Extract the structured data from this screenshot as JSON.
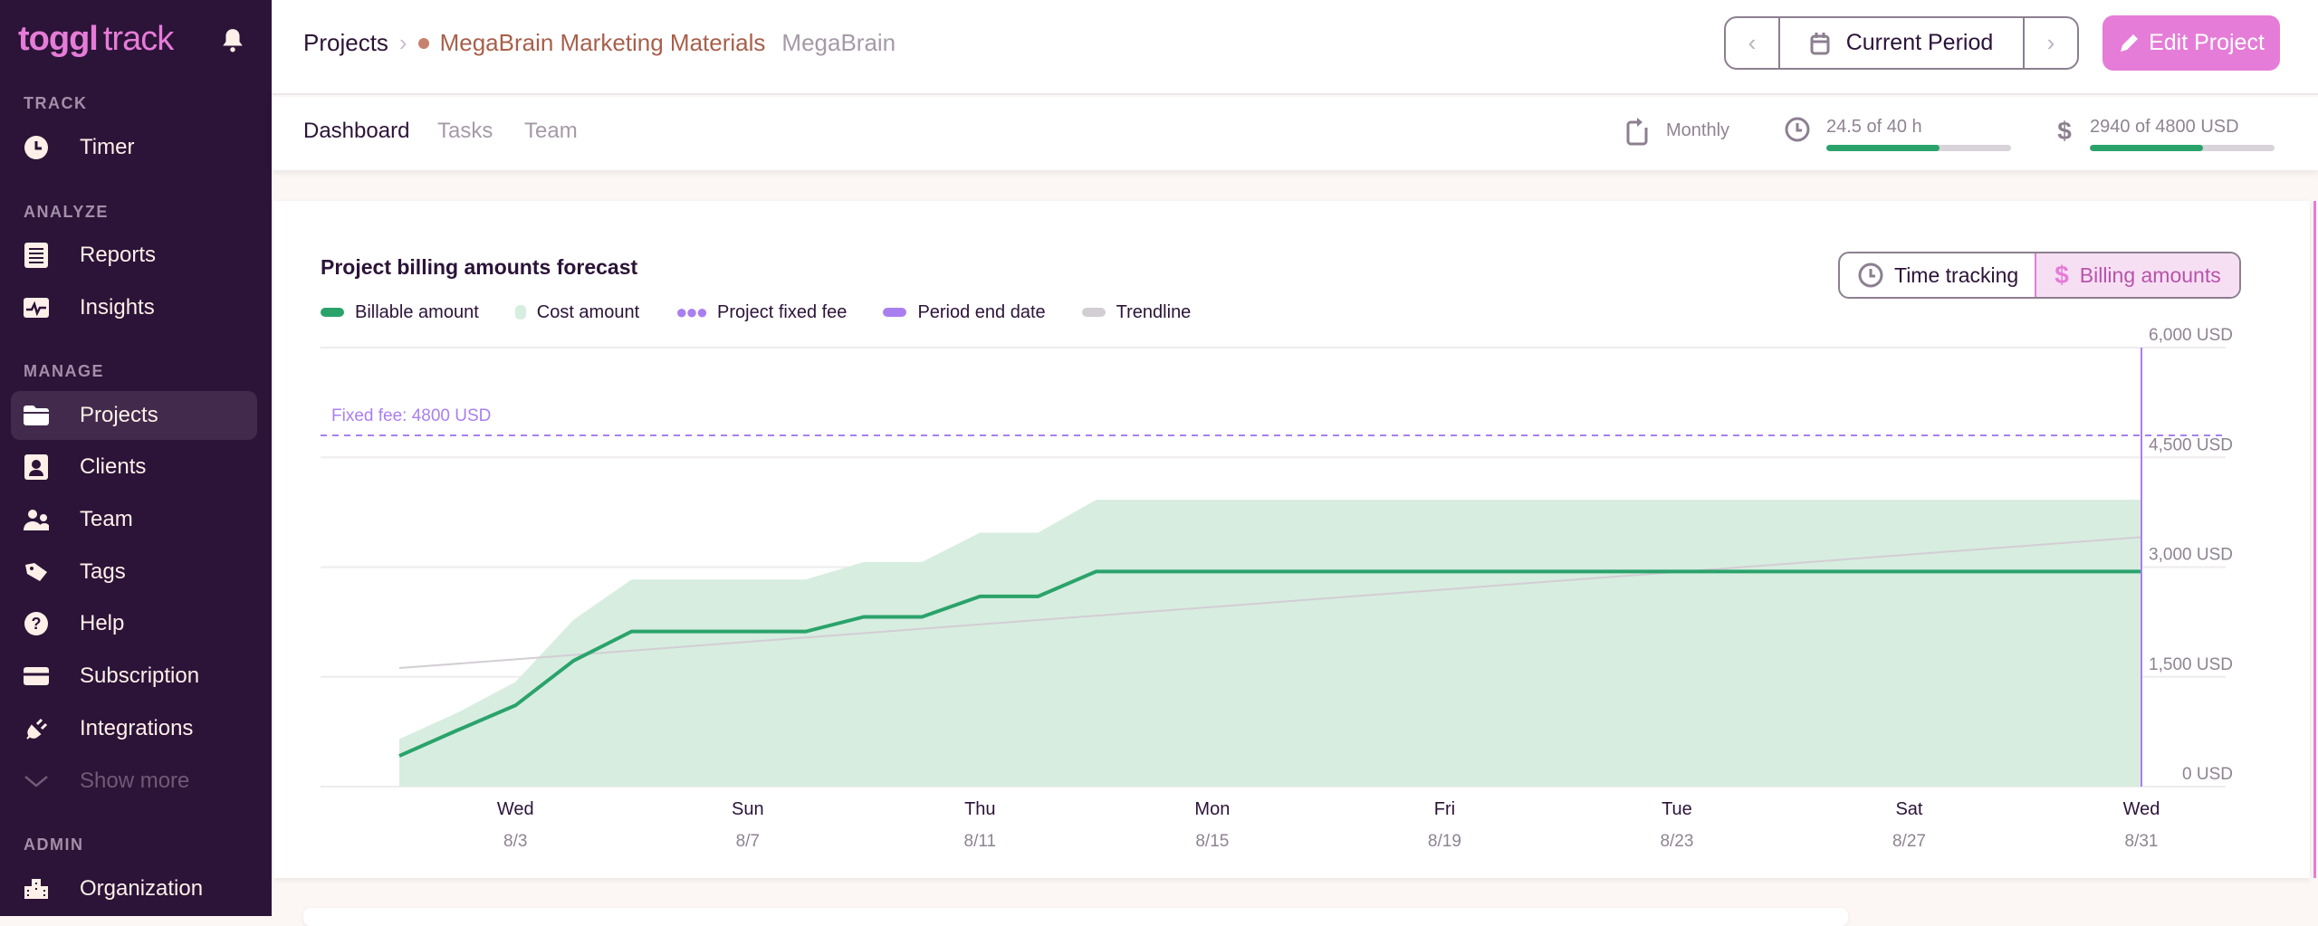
{
  "sidebar": {
    "logo": {
      "bold": "toggl",
      "light": "track"
    },
    "sections": {
      "track": "TRACK",
      "analyze": "ANALYZE",
      "manage": "MANAGE",
      "admin": "ADMIN"
    },
    "items": [
      {
        "label": "Timer",
        "icon": "clock-icon"
      },
      {
        "label": "Reports",
        "icon": "reports-icon"
      },
      {
        "label": "Insights",
        "icon": "insights-icon"
      },
      {
        "label": "Projects",
        "icon": "folder-icon",
        "active": true
      },
      {
        "label": "Clients",
        "icon": "client-icon"
      },
      {
        "label": "Team",
        "icon": "team-icon"
      },
      {
        "label": "Tags",
        "icon": "tag-icon"
      },
      {
        "label": "Help",
        "icon": "help-icon"
      },
      {
        "label": "Subscription",
        "icon": "card-icon"
      },
      {
        "label": "Integrations",
        "icon": "plug-icon"
      },
      {
        "label": "Show more",
        "icon": "chevron-down-icon"
      },
      {
        "label": "Organization",
        "icon": "building-icon"
      }
    ]
  },
  "header": {
    "breadcrumb_root": "Projects",
    "project_name": "MegaBrain Marketing Materials",
    "project_color": "#c7816c",
    "client_name": "MegaBrain",
    "period_label": "Current Period",
    "edit_label": "Edit Project"
  },
  "tabs": [
    {
      "label": "Dashboard",
      "active": true
    },
    {
      "label": "Tasks"
    },
    {
      "label": "Team"
    }
  ],
  "stats": {
    "recurrence": "Monthly",
    "hours": {
      "label": "24.5 of 40 h",
      "progress": 0.6125
    },
    "amount": {
      "label": "2940 of 4800 USD",
      "progress": 0.6125
    }
  },
  "toggle": {
    "time_label": "Time tracking",
    "billing_label": "Billing amounts",
    "selected": "billing"
  },
  "colors": {
    "accent": "#e57cd8",
    "billable": "#2aa36b",
    "cost": "#d7ede0",
    "fixed_fee": "#a97ff0",
    "period_end": "#a97ff0",
    "trendline": "#d3cdd4"
  },
  "chart_data": {
    "type": "line",
    "title": "Project billing amounts forecast",
    "legend": [
      "Billable amount",
      "Cost amount",
      "Project fixed fee",
      "Period end date",
      "Trendline"
    ],
    "legend_position": "top-left",
    "ylim": [
      0,
      6000
    ],
    "yticks": [
      "0 USD",
      "1,500 USD",
      "3,000 USD",
      "4,500 USD",
      "6,000 USD"
    ],
    "ytick_values": [
      0,
      1500,
      3000,
      4500,
      6000
    ],
    "grid": true,
    "x": [
      "8/1",
      "8/2",
      "8/3",
      "8/4",
      "8/5",
      "8/6",
      "8/7",
      "8/8",
      "8/9",
      "8/10",
      "8/11",
      "8/12",
      "8/13",
      "8/14",
      "8/15",
      "8/16",
      "8/17",
      "8/18",
      "8/19",
      "8/20",
      "8/21",
      "8/22",
      "8/23",
      "8/24",
      "8/25",
      "8/26",
      "8/27",
      "8/28",
      "8/29",
      "8/30",
      "8/31"
    ],
    "xticks": [
      {
        "day": "Wed",
        "date": "8/3"
      },
      {
        "day": "Sun",
        "date": "8/7"
      },
      {
        "day": "Thu",
        "date": "8/11"
      },
      {
        "day": "Mon",
        "date": "8/15"
      },
      {
        "day": "Fri",
        "date": "8/19"
      },
      {
        "day": "Tue",
        "date": "8/23"
      },
      {
        "day": "Sat",
        "date": "8/27"
      },
      {
        "day": "Wed",
        "date": "8/31"
      }
    ],
    "series": [
      {
        "name": "Billable amount",
        "type": "line",
        "values": [
          420,
          770,
          1110,
          1720,
          2120,
          2120,
          2120,
          2120,
          2320,
          2320,
          2600,
          2600,
          2940,
          2940,
          2940,
          2940,
          2940,
          2940,
          2940,
          2940,
          2940,
          2940,
          2940,
          2940,
          2940,
          2940,
          2940,
          2940,
          2940,
          2940,
          2940
        ]
      },
      {
        "name": "Cost amount",
        "type": "area",
        "values": [
          650,
          1010,
          1430,
          2280,
          2830,
          2830,
          2830,
          2830,
          3070,
          3070,
          3470,
          3470,
          3920,
          3920,
          3920,
          3920,
          3920,
          3920,
          3920,
          3920,
          3920,
          3920,
          3920,
          3920,
          3920,
          3920,
          3920,
          3920,
          3920,
          3920,
          3920
        ]
      },
      {
        "name": "Trendline",
        "type": "line",
        "values_start_end": [
          1620,
          3410
        ]
      }
    ],
    "fixed_fee": {
      "value": 4800,
      "label": "Fixed fee: 4800 USD"
    },
    "period_end": "8/31"
  }
}
